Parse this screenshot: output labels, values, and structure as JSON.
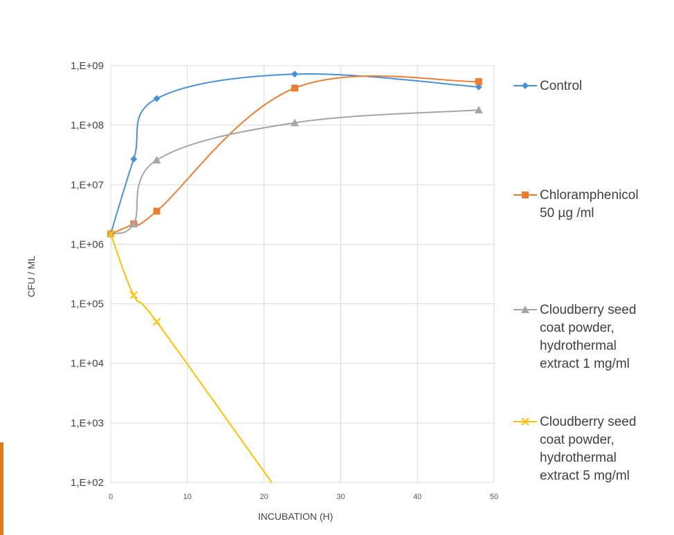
{
  "chart_data": {
    "type": "line",
    "title": "",
    "xlabel": "INCUBATION (H)",
    "ylabel": "CFU / ML",
    "xlim": [
      0,
      50
    ],
    "ylim": [
      100,
      1000000000
    ],
    "y_scale": "log",
    "grid": true,
    "legend_position": "right",
    "x_ticks": [
      "0",
      "10",
      "20",
      "30",
      "40",
      "50"
    ],
    "y_ticks": [
      "1,E+02",
      "1,E+03",
      "1,E+04",
      "1,E+05",
      "1,E+06",
      "1,E+07",
      "1,E+08",
      "1,E+09"
    ],
    "series": [
      {
        "name": "Control",
        "color": "#4a90d6",
        "marker": "diamond",
        "x": [
          0,
          3,
          6,
          24,
          48
        ],
        "y": [
          1500000,
          27000000,
          280000000,
          720000000,
          440000000
        ]
      },
      {
        "name": "Chloramphenicol\n50 µg /ml",
        "color": "#ed7d31",
        "marker": "square",
        "x": [
          0,
          3,
          6,
          24,
          48
        ],
        "y": [
          1500000,
          2200000,
          3600000,
          420000000,
          540000000
        ]
      },
      {
        "name": "Cloudberry seed\ncoat powder,\nhydrothermal\nextract 1 mg/ml",
        "color": "#a5a5a5",
        "marker": "triangle",
        "x": [
          0,
          3,
          6,
          24,
          48
        ],
        "y": [
          1500000,
          2200000,
          26000000,
          110000000,
          180000000
        ]
      },
      {
        "name": "Cloudberry seed\ncoat powder,\nhydrothermal\nextract 5 mg/ml",
        "color": "#ffc000",
        "marker": "x",
        "x": [
          0,
          3,
          6,
          21
        ],
        "y": [
          1500000,
          140000,
          50000,
          100
        ]
      }
    ]
  }
}
